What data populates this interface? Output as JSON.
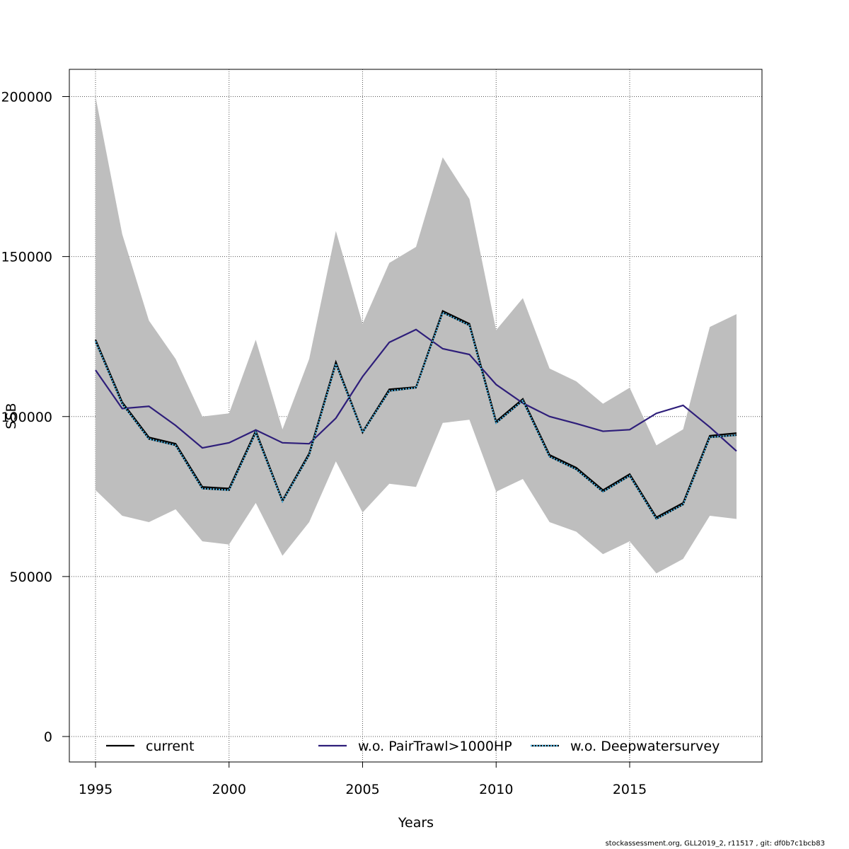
{
  "footer": "stockassessment.org, GLL2019_2, r11517 , git: df0b7c1bcb83",
  "chart_data": {
    "type": "line",
    "xlabel": "Years",
    "ylabel": "SSB",
    "xlim": [
      1994,
      2020
    ],
    "ylim": [
      -8000,
      208000
    ],
    "x_ticks": [
      1995,
      2000,
      2005,
      2010,
      2015
    ],
    "y_ticks": [
      0,
      50000,
      100000,
      150000,
      200000
    ],
    "grid": true,
    "legend_position": "bottom",
    "x": [
      1995,
      1996,
      1997,
      1998,
      1999,
      2000,
      2001,
      2002,
      2003,
      2004,
      2005,
      2006,
      2007,
      2008,
      2009,
      2010,
      2011,
      2012,
      2013,
      2014,
      2015,
      2016,
      2017,
      2018,
      2019
    ],
    "band": {
      "color": "#bebebe",
      "upper": [
        200000,
        157000,
        130000,
        118000,
        100000,
        101000,
        124000,
        96000,
        118000,
        158000,
        129000,
        148000,
        153000,
        181000,
        168000,
        127000,
        137000,
        115000,
        111000,
        104000,
        109000,
        91000,
        96000,
        128000,
        132000
      ],
      "lower": [
        77000,
        69000,
        67000,
        71000,
        61000,
        60000,
        73000,
        56500,
        67000,
        86000,
        70000,
        79000,
        78000,
        98000,
        99000,
        76500,
        80500,
        67000,
        64000,
        57000,
        61000,
        51000,
        55500,
        69000,
        68000
      ]
    },
    "series": [
      {
        "name": "current",
        "color": "#000000",
        "dash": "solid",
        "values": [
          124000,
          104500,
          93500,
          91500,
          78000,
          77500,
          95500,
          73800,
          88500,
          117000,
          95200,
          108500,
          109200,
          133000,
          129000,
          98500,
          105500,
          88000,
          84000,
          77000,
          82000,
          68500,
          73000,
          94000,
          94800
        ]
      },
      {
        "name": "w.o. PairTrawl>1000HP",
        "color": "#2e1e7a",
        "dash": "solid",
        "values": [
          114500,
          102500,
          103200,
          97200,
          90200,
          91800,
          95800,
          91800,
          91500,
          99500,
          112500,
          123200,
          127200,
          121200,
          119400,
          110000,
          104200,
          100000,
          97800,
          95400,
          95900,
          101000,
          103500,
          96700,
          89200
        ]
      },
      {
        "name": "w.o. Deepwatersurvey",
        "color": "#4ab0e0",
        "dash": "dotted",
        "values": [
          123500,
          104000,
          93000,
          91000,
          77500,
          77000,
          95000,
          73500,
          88000,
          116500,
          95000,
          108000,
          109000,
          132500,
          128500,
          98000,
          105000,
          87500,
          83500,
          76500,
          81500,
          68000,
          72500,
          93500,
          94200
        ]
      }
    ]
  }
}
